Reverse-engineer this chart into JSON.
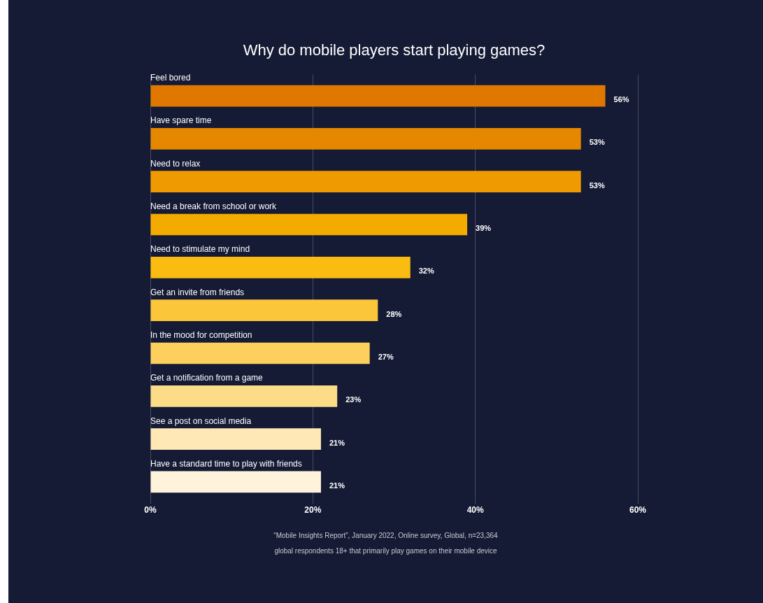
{
  "chart_data": {
    "type": "bar",
    "orientation": "horizontal",
    "title": "Why do mobile players start playing games?",
    "categories": [
      "Feel bored",
      "Have spare time",
      "Need to relax",
      "Need a break from school or work",
      "Need to stimulate my mind",
      "Get an invite from friends",
      "In the mood for competition",
      "Get a notification from a game",
      "See a post on social media",
      "Have a standard time to play with friends"
    ],
    "values": [
      56,
      53,
      53,
      39,
      32,
      28,
      27,
      23,
      21,
      21
    ],
    "value_labels": [
      "56%",
      "53%",
      "53%",
      "39%",
      "32%",
      "28%",
      "27%",
      "23%",
      "21%",
      "21%"
    ],
    "colors": [
      "#e07800",
      "#e58800",
      "#ee9a00",
      "#f4ab00",
      "#fabc10",
      "#fcc63a",
      "#fdd05e",
      "#fddc88",
      "#fee8b6",
      "#fff3dc"
    ],
    "xlim": [
      0,
      60
    ],
    "xticks": [
      {
        "value": 0,
        "label": "0%"
      },
      {
        "value": 20,
        "label": "20%"
      },
      {
        "value": 40,
        "label": "40%"
      },
      {
        "value": 60,
        "label": "60%"
      }
    ],
    "grid": "x",
    "legend": false,
    "annotations": [
      "“Mobile Insights Report”, January 2022, Online survey, Global, n=23,364",
      "global respondents 18+ that primarily play games on their mobile device"
    ]
  }
}
